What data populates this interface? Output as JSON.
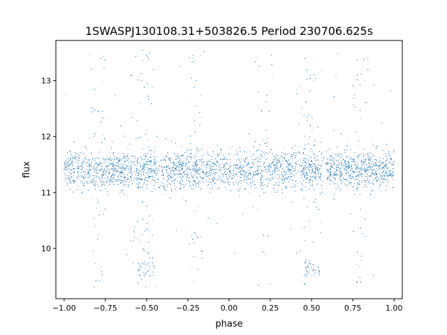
{
  "chart_data": {
    "type": "scatter",
    "title": "1SWASPJ130108.31+503826.5 Period 230706.625s",
    "xlabel": "phase",
    "ylabel": "flux",
    "xlim": [
      -1.05,
      1.05
    ],
    "ylim": [
      9.1,
      13.72
    ],
    "xticks": [
      -1.0,
      -0.75,
      -0.5,
      -0.25,
      0.0,
      0.25,
      0.5,
      0.75,
      1.0
    ],
    "xtick_labels": [
      "−1.00",
      "−0.75",
      "−0.50",
      "−0.25",
      "0.00",
      "0.25",
      "0.50",
      "0.75",
      "1.00"
    ],
    "yticks": [
      10,
      11,
      12,
      13
    ],
    "ytick_labels": [
      "10",
      "11",
      "12",
      "13"
    ],
    "grid": false,
    "series": [
      {
        "color": "#1f77b4",
        "phase_range": [
          -1.0,
          1.0
        ],
        "baseline_flux": 11.4,
        "baseline_spread": 0.17,
        "dense_band": [
          11.05,
          11.8
        ],
        "outlier_range": [
          9.3,
          13.55
        ],
        "dip_phases": [
          -0.5,
          0.5
        ],
        "dip_flux_range": [
          9.5,
          9.75
        ],
        "point_count": 20000
      }
    ]
  }
}
